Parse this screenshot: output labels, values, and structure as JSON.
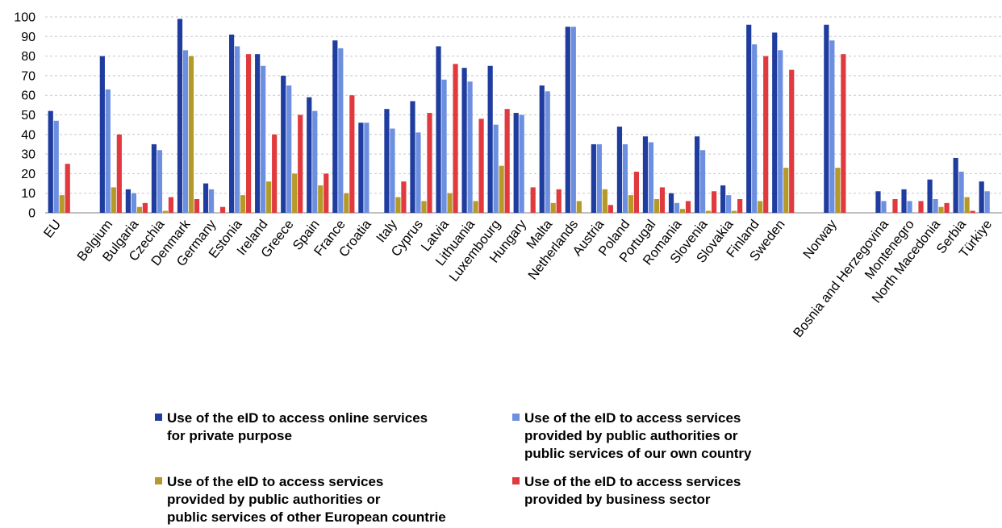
{
  "chart_data": {
    "type": "bar",
    "ylim": [
      0,
      100
    ],
    "yticks": [
      0,
      10,
      20,
      30,
      40,
      50,
      60,
      70,
      80,
      90,
      100
    ],
    "grid": true,
    "legend_position": "bottom",
    "categories": [
      "EU",
      "",
      "Belgium",
      "Bulgaria",
      "Czechia",
      "Denmark",
      "Germany",
      "Estonia",
      "Ireland",
      "Greece",
      "Spain",
      "France",
      "Croatia",
      "Italy",
      "Cyprus",
      "Latvia",
      "Lithuania",
      "Luxembourg",
      "Hungary",
      "Malta",
      "Netherlands",
      "Austria",
      "Poland",
      "Portugal",
      "Romania",
      "Slovenia",
      "Slovakia",
      "Finland",
      "Sweden",
      "",
      "Norway",
      "",
      "Bosnia and Herzegovina",
      "Montenegro",
      "North Macedonia",
      "Serbia",
      "Türkiye"
    ],
    "series": [
      {
        "name": "Use of the eID to access online services\nfor private purpose",
        "color": "#1F3C9F",
        "values": [
          52,
          null,
          80,
          12,
          35,
          99,
          15,
          91,
          81,
          70,
          59,
          88,
          46,
          53,
          57,
          85,
          74,
          75,
          51,
          65,
          95,
          35,
          44,
          39,
          10,
          39,
          14,
          96,
          92,
          null,
          96,
          null,
          11,
          12,
          17,
          28,
          16
        ]
      },
      {
        "name": "Use of the eID to access services\nprovided by public authorities or\npublic services of our own country",
        "color": "#6D8FE0",
        "values": [
          47,
          null,
          63,
          10,
          32,
          83,
          12,
          85,
          75,
          65,
          52,
          84,
          46,
          43,
          41,
          68,
          67,
          45,
          50,
          62,
          95,
          35,
          35,
          36,
          5,
          32,
          9,
          86,
          83,
          null,
          88,
          null,
          6,
          6,
          7,
          21,
          11
        ]
      },
      {
        "name": "Use of the eID to access services\nprovided by public authorities or\n public services of other European countrie",
        "color": "#B59A29",
        "values": [
          9,
          null,
          13,
          3,
          1,
          80,
          null,
          9,
          16,
          20,
          14,
          10,
          null,
          8,
          6,
          10,
          6,
          24,
          null,
          5,
          6,
          12,
          9,
          7,
          2,
          1,
          1,
          6,
          23,
          null,
          23,
          null,
          null,
          null,
          3,
          8,
          null
        ]
      },
      {
        "name": "Use of the eID to access services\nprovided by business sector",
        "color": "#E03A3E",
        "values": [
          25,
          null,
          40,
          5,
          8,
          7,
          3,
          81,
          40,
          50,
          20,
          60,
          null,
          16,
          51,
          76,
          48,
          53,
          13,
          12,
          null,
          4,
          21,
          13,
          6,
          11,
          7,
          80,
          73,
          null,
          81,
          null,
          7,
          6,
          5,
          1,
          null
        ]
      }
    ]
  }
}
